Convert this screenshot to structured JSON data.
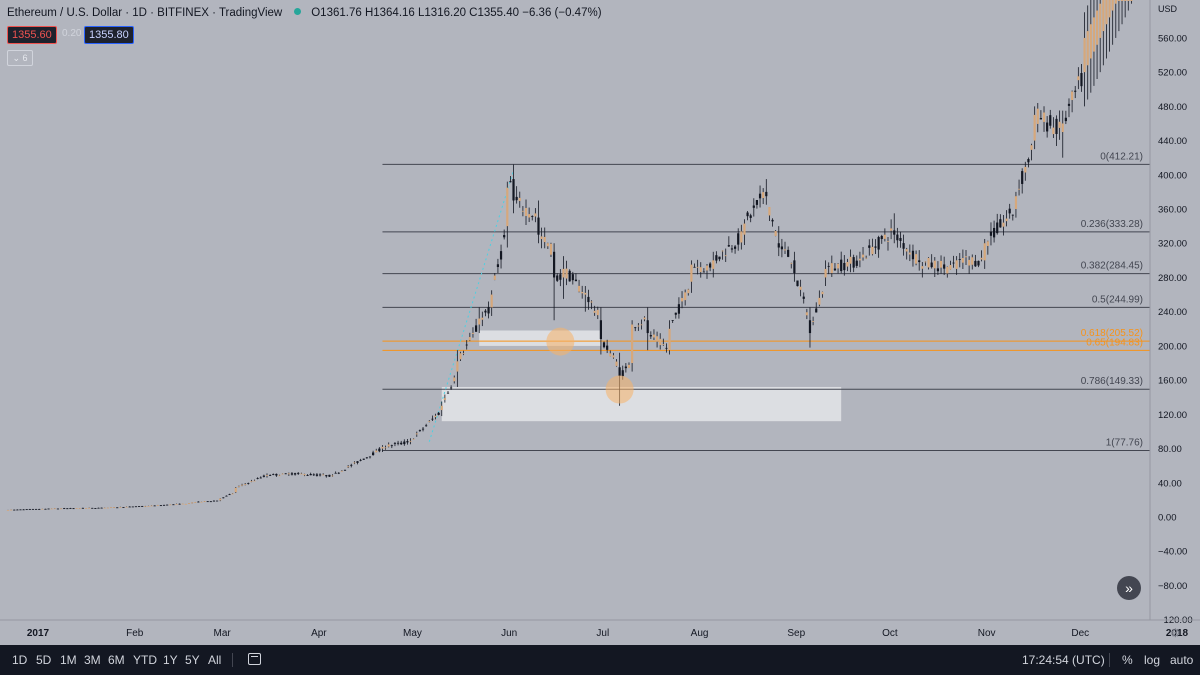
{
  "header": {
    "title": "Ethereum / U.S. Dollar · 1D · BITFINEX · TradingView",
    "ohlc": "O1361.76 H1364.16 L1316.20 C1355.40 −6.36 (−0.47%)",
    "sell_price": "1355.60",
    "spread": "0.20",
    "buy_price": "1355.80",
    "collapse_label": "⌄ 6"
  },
  "chart_data": {
    "type": "candlestick",
    "currency_label": "USD",
    "y_ticks": [
      "560.00",
      "520.00",
      "480.00",
      "440.00",
      "400.00",
      "360.00",
      "320.00",
      "280.00",
      "240.00",
      "200.00",
      "160.00",
      "120.00",
      "80.00",
      "40.00",
      "0.00",
      "−40.00",
      "−80.00",
      "−120.00"
    ],
    "ylim": [
      -120,
      600
    ],
    "x_ticks": [
      "2017",
      "Feb",
      "Mar",
      "Apr",
      "May",
      "Jun",
      "Jul",
      "Aug",
      "Sep",
      "Oct",
      "Nov",
      "Dec",
      "2018"
    ],
    "xlim": [
      "2017-01-01",
      "2018-01-01"
    ],
    "fib_levels": [
      {
        "label": "0(412.21)",
        "value": 412.21,
        "color": "#434651"
      },
      {
        "label": "0.236(333.28)",
        "value": 333.28,
        "color": "#434651"
      },
      {
        "label": "0.382(284.45)",
        "value": 284.45,
        "color": "#434651"
      },
      {
        "label": "0.5(244.99)",
        "value": 244.99,
        "color": "#434651"
      },
      {
        "label": "0.618(205.52)",
        "value": 205.52,
        "color": "#f7931a"
      },
      {
        "label": "0.65(194.83)",
        "value": 194.83,
        "color": "#f7931a"
      },
      {
        "label": "0.786(149.33)",
        "value": 149.33,
        "color": "#434651"
      },
      {
        "label": "1(77.76)",
        "value": 77.76,
        "color": "#434651"
      }
    ],
    "fib_range": {
      "from": "2017-05-01",
      "to": "2018-01-01"
    },
    "zones": [
      {
        "from": "2017-06-01",
        "to": "2017-07-10",
        "low": 200,
        "high": 218
      },
      {
        "from": "2017-05-20",
        "to": "2017-09-25",
        "low": 112,
        "high": 152
      }
    ],
    "markers": [
      {
        "date": "2017-06-27",
        "value": 205
      },
      {
        "date": "2017-07-16",
        "value": 149
      }
    ],
    "trend_line": {
      "from": {
        "date": "2017-05-16",
        "value": 88
      },
      "to": {
        "date": "2017-06-12",
        "value": 405
      }
    },
    "ohlc_days": [
      [
        "2017-01-01",
        8.0,
        8.3,
        7.9,
        8.2
      ],
      [
        "2017-01-15",
        9.7,
        10.0,
        9.5,
        9.8
      ],
      [
        "2017-02-01",
        10.7,
        11.0,
        10.5,
        10.8
      ],
      [
        "2017-02-15",
        12.8,
        13.1,
        12.5,
        12.9
      ],
      [
        "2017-03-01",
        16.0,
        17.2,
        15.8,
        17.0
      ],
      [
        "2017-03-10",
        19.5,
        22.0,
        18.5,
        21.5
      ],
      [
        "2017-03-15",
        29.0,
        35.0,
        28.0,
        34.0
      ],
      [
        "2017-03-25",
        49.0,
        51.0,
        46.0,
        49.0
      ],
      [
        "2017-04-01",
        50.0,
        52.0,
        48.0,
        51.0
      ],
      [
        "2017-04-15",
        48.0,
        50.0,
        47.0,
        48.5
      ],
      [
        "2017-05-01",
        80.0,
        84.0,
        76.0,
        82.0
      ],
      [
        "2017-05-10",
        88.0,
        92.0,
        85.0,
        89.0
      ],
      [
        "2017-05-20",
        125.0,
        135.0,
        118.0,
        130.0
      ],
      [
        "2017-05-25",
        170.0,
        195.0,
        152.0,
        182.0
      ],
      [
        "2017-06-01",
        225.0,
        245.0,
        215.0,
        232.0
      ],
      [
        "2017-06-05",
        245.0,
        265.0,
        235.0,
        260.0
      ],
      [
        "2017-06-10",
        340.0,
        392.0,
        315.0,
        385.0
      ],
      [
        "2017-06-12",
        395.0,
        412.0,
        355.0,
        370.0
      ],
      [
        "2017-06-20",
        350.0,
        370.0,
        320.0,
        330.0
      ],
      [
        "2017-06-25",
        310.0,
        320.0,
        230.0,
        280.0
      ],
      [
        "2017-06-28",
        280.0,
        305.0,
        255.0,
        290.0
      ],
      [
        "2017-07-05",
        260.0,
        270.0,
        240.0,
        262.0
      ],
      [
        "2017-07-10",
        230.0,
        245.0,
        190.0,
        208.0
      ],
      [
        "2017-07-16",
        175.0,
        192.0,
        130.0,
        165.0
      ],
      [
        "2017-07-20",
        180.0,
        230.0,
        170.0,
        225.0
      ],
      [
        "2017-07-25",
        230.0,
        245.0,
        195.0,
        215.0
      ],
      [
        "2017-08-01",
        195.0,
        230.0,
        190.0,
        220.0
      ],
      [
        "2017-08-08",
        275.0,
        300.0,
        262.0,
        295.0
      ],
      [
        "2017-08-15",
        290.0,
        310.0,
        280.0,
        300.0
      ],
      [
        "2017-08-25",
        330.0,
        348.0,
        318.0,
        343.0
      ],
      [
        "2017-09-01",
        380.0,
        395.0,
        365.0,
        375.0
      ],
      [
        "2017-09-05",
        320.0,
        340.0,
        305.0,
        315.0
      ],
      [
        "2017-09-10",
        300.0,
        310.0,
        275.0,
        285.0
      ],
      [
        "2017-09-15",
        230.0,
        245.0,
        198.0,
        215.0
      ],
      [
        "2017-09-20",
        280.0,
        300.0,
        270.0,
        290.0
      ],
      [
        "2017-10-01",
        300.0,
        310.0,
        292.0,
        302.0
      ],
      [
        "2017-10-12",
        335.0,
        355.0,
        320.0,
        330.0
      ],
      [
        "2017-10-20",
        300.0,
        312.0,
        288.0,
        298.0
      ],
      [
        "2017-11-01",
        290.0,
        305.0,
        283.0,
        300.0
      ],
      [
        "2017-11-10",
        300.0,
        325.0,
        290.0,
        320.0
      ],
      [
        "2017-11-20",
        360.0,
        380.0,
        350.0,
        375.0
      ],
      [
        "2017-11-26",
        440.0,
        480.0,
        430.0,
        470.0
      ],
      [
        "2017-12-05",
        450.0,
        475.0,
        420.0,
        460.0
      ],
      [
        "2017-12-12",
        520.0,
        580.0,
        480.0,
        570.0
      ]
    ]
  },
  "footer": {
    "ranges": [
      "1D",
      "5D",
      "1M",
      "3M",
      "6M",
      "YTD",
      "1Y",
      "5Y",
      "All"
    ],
    "clock": "17:24:54 (UTC)",
    "percent": "%",
    "log": "log",
    "auto": "auto"
  }
}
